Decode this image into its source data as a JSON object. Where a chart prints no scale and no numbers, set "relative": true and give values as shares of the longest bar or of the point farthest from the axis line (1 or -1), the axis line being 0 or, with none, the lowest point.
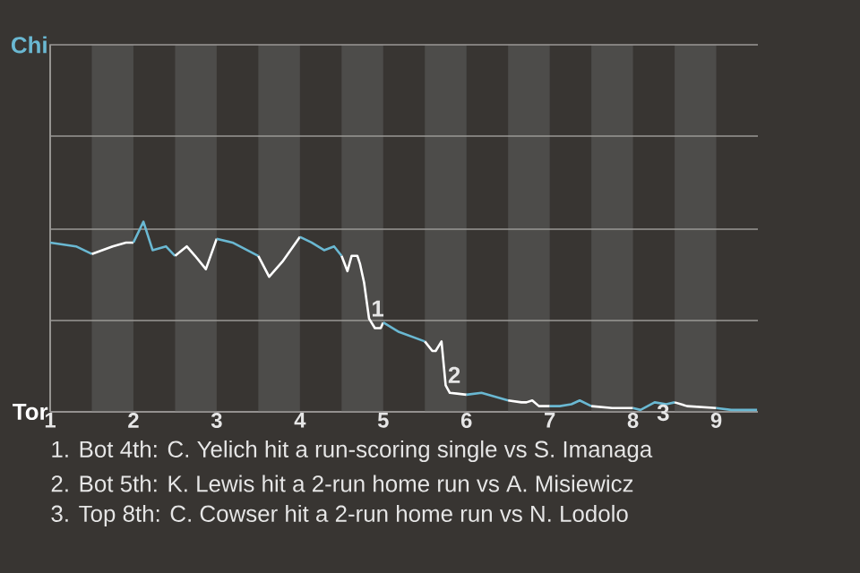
{
  "chart_data": {
    "type": "line",
    "relative": true,
    "series": [
      {
        "color": "#6ab8d2",
        "x": [
          1.0,
          1.31,
          1.5
        ],
        "values": [
          0.89,
          0.87,
          0.83
        ]
      },
      {
        "color": "#ffffff",
        "x": [
          1.5,
          1.75,
          1.91,
          2.0
        ],
        "values": [
          0.83,
          0.87,
          0.89,
          0.89
        ]
      },
      {
        "color": "#6ab8d2",
        "x": [
          2.0,
          2.12,
          2.23,
          2.39,
          2.5
        ],
        "values": [
          0.89,
          1.0,
          0.85,
          0.87,
          0.82
        ]
      },
      {
        "color": "#ffffff",
        "x": [
          2.5,
          2.64,
          2.74,
          2.87,
          3.0
        ],
        "values": [
          0.82,
          0.87,
          0.82,
          0.75,
          0.91
        ]
      },
      {
        "color": "#6ab8d2",
        "x": [
          3.0,
          3.19,
          3.5
        ],
        "values": [
          0.91,
          0.89,
          0.82
        ]
      },
      {
        "color": "#ffffff",
        "x": [
          3.5,
          3.63,
          3.79,
          4.0
        ],
        "values": [
          0.82,
          0.71,
          0.79,
          0.92
        ]
      },
      {
        "color": "#6ab8d2",
        "x": [
          4.0,
          4.14,
          4.29,
          4.41,
          4.5
        ],
        "values": [
          0.92,
          0.89,
          0.85,
          0.87,
          0.82
        ]
      },
      {
        "color": "#ffffff",
        "x": [
          4.5,
          4.57,
          4.62,
          4.69,
          4.72,
          4.77,
          4.83,
          4.9,
          4.97,
          5.0
        ],
        "values": [
          0.82,
          0.74,
          0.82,
          0.82,
          0.78,
          0.68,
          0.49,
          0.44,
          0.44,
          0.47
        ]
      },
      {
        "color": "#6ab8d2",
        "x": [
          5.0,
          5.19,
          5.5
        ],
        "values": [
          0.47,
          0.42,
          0.37
        ]
      },
      {
        "color": "#ffffff",
        "x": [
          5.5,
          5.59,
          5.63,
          5.7,
          5.75,
          5.8,
          6.0
        ],
        "values": [
          0.37,
          0.32,
          0.32,
          0.37,
          0.14,
          0.1,
          0.09
        ]
      },
      {
        "color": "#6ab8d2",
        "x": [
          6.0,
          6.18,
          6.5
        ],
        "values": [
          0.09,
          0.1,
          0.06
        ]
      },
      {
        "color": "#ffffff",
        "x": [
          6.5,
          6.66,
          6.72,
          6.79,
          6.87,
          7.0
        ],
        "values": [
          0.06,
          0.05,
          0.05,
          0.06,
          0.03,
          0.03
        ]
      },
      {
        "color": "#6ab8d2",
        "x": [
          7.0,
          7.12,
          7.26,
          7.36,
          7.5
        ],
        "values": [
          0.03,
          0.03,
          0.04,
          0.06,
          0.03
        ]
      },
      {
        "color": "#ffffff",
        "x": [
          7.5,
          7.75,
          8.0
        ],
        "values": [
          0.03,
          0.02,
          0.02
        ]
      },
      {
        "color": "#6ab8d2",
        "x": [
          8.0,
          8.09,
          8.26,
          8.4,
          8.5
        ],
        "values": [
          0.02,
          0.01,
          0.05,
          0.04,
          0.05
        ]
      },
      {
        "color": "#ffffff",
        "x": [
          8.5,
          8.65,
          9.0
        ],
        "values": [
          0.05,
          0.03,
          0.02
        ]
      },
      {
        "color": "#6ab8d2",
        "x": [
          9.0,
          9.18,
          9.49
        ],
        "values": [
          0.02,
          0.01,
          0.01
        ]
      }
    ],
    "xlim": [
      1,
      9.5
    ],
    "xticks": [
      {
        "value": 1,
        "label": "1"
      },
      {
        "value": 2,
        "label": "2"
      },
      {
        "value": 3,
        "label": "3"
      },
      {
        "value": 4,
        "label": "4"
      },
      {
        "value": 5,
        "label": "5"
      },
      {
        "value": 6,
        "label": "6"
      },
      {
        "value": 7,
        "label": "7"
      },
      {
        "value": 8,
        "label": "8"
      },
      {
        "value": 9,
        "label": "9"
      }
    ],
    "ref_lines": [
      {
        "axis": "y",
        "value": 0.48,
        "color": "#9a9896"
      },
      {
        "axis": "y",
        "value": 0.96,
        "color": "#9a9896"
      },
      {
        "axis": "y",
        "value": 1.45,
        "color": "#9a9896"
      }
    ],
    "marker": "none",
    "line_style": "solid",
    "bands": [
      {
        "axis": "x",
        "from": 1.5,
        "to": 2.0,
        "color": "#4d4c4a"
      },
      {
        "axis": "x",
        "from": 2.5,
        "to": 3.0,
        "color": "#4d4c4a"
      },
      {
        "axis": "x",
        "from": 3.5,
        "to": 4.0,
        "color": "#4d4c4a"
      },
      {
        "axis": "x",
        "from": 4.5,
        "to": 5.0,
        "color": "#4d4c4a"
      },
      {
        "axis": "x",
        "from": 5.5,
        "to": 6.0,
        "color": "#4d4c4a"
      },
      {
        "axis": "x",
        "from": 6.5,
        "to": 7.0,
        "color": "#4d4c4a"
      },
      {
        "axis": "x",
        "from": 7.5,
        "to": 8.0,
        "color": "#4d4c4a"
      },
      {
        "axis": "x",
        "from": 8.5,
        "to": 9.0,
        "color": "#4d4c4a"
      }
    ],
    "annotations": [
      "Chi",
      "Tor",
      {
        "text": "1",
        "x": 4.83,
        "y": 0.49
      },
      {
        "text": "2",
        "x": 5.75,
        "y": 0.14
      },
      {
        "text": "3",
        "x": 8.26,
        "y": 0.05
      },
      "1. Bot 4th: C. Yelich hit a run-scoring single vs S. Imanaga",
      "2. Bot 5th: K. Lewis hit a 2-run home run vs A. Misiewicz",
      "3. Top 8th: C. Cowser hit a 2-run home run vs N. Lodolo"
    ]
  }
}
